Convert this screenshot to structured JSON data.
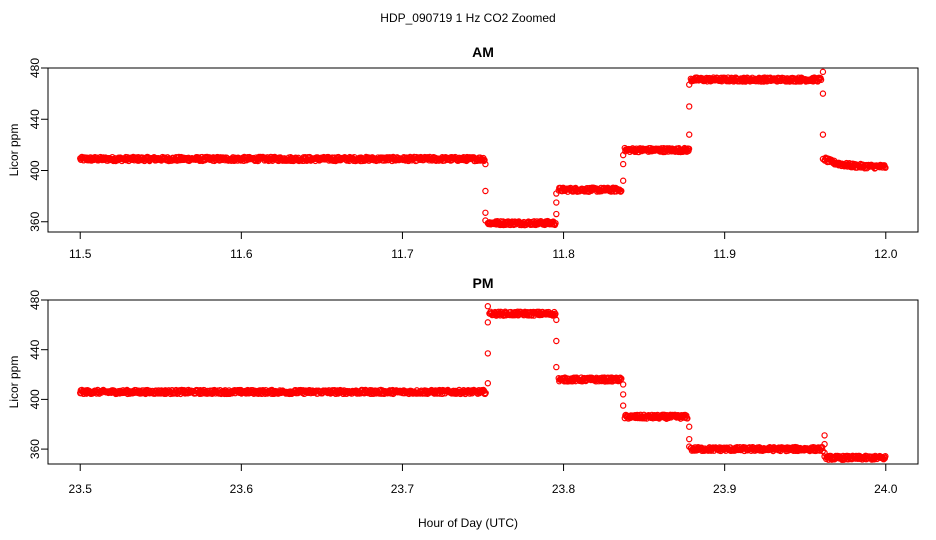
{
  "figure": {
    "title": "HDP_090719  1 Hz CO2 Zoomed",
    "xlabel": "Hour of Day (UTC)"
  },
  "chart_data": [
    {
      "type": "scatter",
      "title": "AM",
      "ylabel": "Licor ppm",
      "xlim": [
        11.5,
        12.0
      ],
      "ylim": [
        352,
        480
      ],
      "x_ticks": [
        "11.5",
        "11.6",
        "11.7",
        "11.8",
        "11.9",
        "12.0"
      ],
      "y_ticks": [
        "360",
        "400",
        "440",
        "480"
      ],
      "point_color": "#ff0000",
      "marker": "open-circle",
      "segments": [
        {
          "x_start": 11.5,
          "x_end": 11.751,
          "y": 409
        },
        {
          "x_start": 11.753,
          "x_end": 11.795,
          "y": 359
        },
        {
          "x_start": 11.797,
          "x_end": 11.836,
          "y": 385
        },
        {
          "x_start": 11.838,
          "x_end": 11.878,
          "y": 416
        },
        {
          "x_start": 11.879,
          "x_end": 11.96,
          "y": 471
        },
        {
          "x_start": 11.962,
          "x_end": 12.0,
          "y": 403,
          "start_y": 409
        }
      ],
      "transitions": [
        {
          "x": 11.7515,
          "y": [
            405,
            384,
            367,
            361
          ]
        },
        {
          "x": 11.7955,
          "y": [
            366,
            375,
            382
          ]
        },
        {
          "x": 11.837,
          "y": [
            392,
            405,
            412
          ]
        },
        {
          "x": 11.878,
          "y": [
            428,
            450,
            467
          ]
        },
        {
          "x": 11.961,
          "y": [
            477,
            460,
            428,
            409
          ]
        }
      ]
    },
    {
      "type": "scatter",
      "title": "PM",
      "ylabel": "Licor ppm",
      "xlim": [
        23.5,
        24.0
      ],
      "ylim": [
        348,
        480
      ],
      "x_ticks": [
        "23.5",
        "23.6",
        "23.7",
        "23.8",
        "23.9",
        "24.0"
      ],
      "y_ticks": [
        "360",
        "400",
        "440",
        "480"
      ],
      "point_color": "#ff0000",
      "marker": "open-circle",
      "segments": [
        {
          "x_start": 23.5,
          "x_end": 23.752,
          "y": 406
        },
        {
          "x_start": 23.754,
          "x_end": 23.795,
          "y": 469
        },
        {
          "x_start": 23.797,
          "x_end": 23.836,
          "y": 416
        },
        {
          "x_start": 23.838,
          "x_end": 23.877,
          "y": 386
        },
        {
          "x_start": 23.879,
          "x_end": 23.961,
          "y": 360
        },
        {
          "x_start": 23.963,
          "x_end": 24.0,
          "y": 353
        }
      ],
      "transitions": [
        {
          "x": 23.753,
          "y": [
            413,
            437,
            462,
            475
          ]
        },
        {
          "x": 23.7955,
          "y": [
            464,
            447,
            426
          ]
        },
        {
          "x": 23.837,
          "y": [
            412,
            404,
            395
          ]
        },
        {
          "x": 23.878,
          "y": [
            378,
            368,
            362
          ]
        },
        {
          "x": 23.962,
          "y": [
            371,
            364,
            357,
            354
          ]
        }
      ]
    }
  ]
}
